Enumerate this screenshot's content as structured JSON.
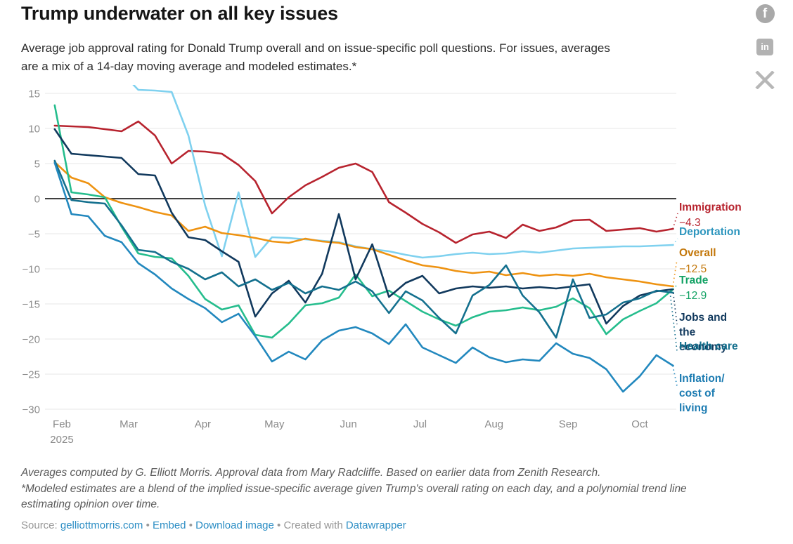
{
  "header": {
    "title": "Trump underwater on all key issues",
    "subtitle_lines": [
      "Average job approval rating for Donald Trump overall and on issue-specific poll questions. For issues, averages",
      "are a mix of a 14-day moving average and modeled estimates.*"
    ]
  },
  "social": {
    "facebook": "f",
    "linkedin": "in",
    "x": "X"
  },
  "chart_data": {
    "type": "line",
    "title": "Trump underwater on all key issues",
    "x_unit": "days since 2025-01-29, weekly cadence",
    "cadence_days": 7,
    "ylim": [
      -30,
      15
    ],
    "grid": "horizontal-only",
    "zero_line": true,
    "y_ticks": [
      15,
      10,
      5,
      0,
      -5,
      -10,
      -15,
      -20,
      -25,
      -30
    ],
    "x_ticks": [
      {
        "label": "Feb",
        "sub": "2025",
        "day": 3
      },
      {
        "label": "Mar",
        "day": 31
      },
      {
        "label": "Apr",
        "day": 62
      },
      {
        "label": "May",
        "day": 92
      },
      {
        "label": "Jun",
        "day": 123
      },
      {
        "label": "Jul",
        "day": 153
      },
      {
        "label": "Aug",
        "day": 184
      },
      {
        "label": "Sep",
        "day": 215
      },
      {
        "label": "Oct",
        "day": 245
      }
    ],
    "series": [
      {
        "id": "immigration",
        "label": "Immigration",
        "label_lines": [
          "Immigration"
        ],
        "value_label": "−4.3",
        "color": "#b7232e",
        "label_color": "#b7232e",
        "values": [
          10.4,
          10.3,
          10.2,
          9.9,
          9.6,
          11.0,
          9.0,
          5.0,
          6.8,
          6.7,
          6.4,
          4.8,
          2.5,
          -2.1,
          0.2,
          1.9,
          3.1,
          4.4,
          5.0,
          3.8,
          -0.5,
          -2.0,
          -3.6,
          -4.8,
          -6.3,
          -5.1,
          -4.7,
          -5.6,
          -3.7,
          -4.6,
          -4.1,
          -3.1,
          -3.0,
          -4.6,
          -4.4,
          -4.2,
          -4.7,
          -4.3
        ]
      },
      {
        "id": "deportation",
        "label": "Deportation",
        "label_lines": [
          "Deportation"
        ],
        "value_label": "",
        "color": "#7fd1ef",
        "label_color": "#2e96be",
        "values": [
          null,
          null,
          null,
          null,
          18.0,
          15.5,
          15.4,
          15.2,
          9.0,
          -1.0,
          -8.2,
          0.9,
          -8.3,
          -5.5,
          -5.6,
          -5.8,
          -6.0,
          -6.2,
          -6.8,
          -7.2,
          -7.5,
          -8.0,
          -8.4,
          -8.2,
          -7.9,
          -7.7,
          -7.9,
          -7.8,
          -7.5,
          -7.7,
          -7.4,
          -7.1,
          -7.0,
          -6.9,
          -6.8,
          -6.8,
          -6.7,
          -6.6
        ]
      },
      {
        "id": "overall",
        "label": "Overall",
        "label_lines": [
          "Overall"
        ],
        "value_label": "−12.5",
        "color": "#ee9312",
        "label_color": "#c3770a",
        "values": [
          5.2,
          3.0,
          2.2,
          0.2,
          -0.6,
          -1.2,
          -1.9,
          -2.4,
          -4.6,
          -4.0,
          -4.9,
          -5.2,
          -5.6,
          -6.1,
          -6.3,
          -5.7,
          -6.1,
          -6.3,
          -6.9,
          -7.2,
          -8.0,
          -8.8,
          -9.5,
          -9.8,
          -10.3,
          -10.6,
          -10.4,
          -10.9,
          -10.6,
          -11.0,
          -10.8,
          -11.0,
          -10.7,
          -11.2,
          -11.5,
          -11.8,
          -12.2,
          -12.5
        ]
      },
      {
        "id": "trade",
        "label": "Trade",
        "label_lines": [
          "Trade"
        ],
        "value_label": "−12.9",
        "color": "#25bd8d",
        "label_color": "#12a264",
        "values": [
          13.3,
          0.9,
          0.6,
          0.2,
          -4.0,
          -7.8,
          -8.3,
          -8.5,
          -11.0,
          -14.3,
          -15.8,
          -15.2,
          -19.4,
          -19.8,
          -17.8,
          -15.2,
          -14.9,
          -14.1,
          -10.8,
          -13.9,
          -13.1,
          -14.6,
          -16.1,
          -17.2,
          -18.1,
          -16.9,
          -16.1,
          -15.9,
          -15.5,
          -15.9,
          -15.4,
          -14.2,
          -15.6,
          -19.3,
          -17.2,
          -16.0,
          -14.9,
          -12.9
        ]
      },
      {
        "id": "jobs",
        "label": "Jobs and the economy",
        "label_lines": [
          "Jobs and",
          "the",
          "economy"
        ],
        "value_label": "",
        "color": "#11395d",
        "label_color": "#11395d",
        "values": [
          9.9,
          6.4,
          6.2,
          6.0,
          5.8,
          3.5,
          3.3,
          -2.0,
          -5.5,
          -5.9,
          -7.5,
          -9.0,
          -16.8,
          -13.5,
          -11.7,
          -14.8,
          -10.7,
          -2.2,
          -11.5,
          -6.5,
          -14.0,
          -12.0,
          -11.0,
          -13.5,
          -12.8,
          -12.5,
          -12.7,
          -12.5,
          -12.8,
          -12.6,
          -12.8,
          -12.5,
          -12.2,
          -17.8,
          -15.3,
          -13.8,
          -13.2,
          -12.9
        ]
      },
      {
        "id": "health",
        "label": "Health care",
        "label_lines": [
          "Health care"
        ],
        "value_label": "",
        "color": "#14708e",
        "label_color": "#14708e",
        "values": [
          5.4,
          -0.2,
          -0.5,
          -0.7,
          -3.8,
          -7.3,
          -7.6,
          -9.0,
          -10.0,
          -11.5,
          -10.5,
          -12.5,
          -11.5,
          -13.0,
          -12.0,
          -13.5,
          -12.5,
          -13.0,
          -11.8,
          -13.2,
          -16.3,
          -13.2,
          -14.5,
          -17.0,
          -19.2,
          -13.8,
          -12.3,
          -9.5,
          -13.8,
          -16.2,
          -19.8,
          -11.5,
          -17.0,
          -16.5,
          -14.8,
          -14.2,
          -13.1,
          -13.4
        ]
      },
      {
        "id": "inflation",
        "label": "Inflation/ cost of living",
        "label_lines": [
          "Inflation/",
          "cost of",
          "living"
        ],
        "value_label": "",
        "color": "#2288be",
        "label_color": "#1d7cb2",
        "values": [
          5.1,
          -2.2,
          -2.5,
          -5.3,
          -6.2,
          -9.2,
          -10.8,
          -12.8,
          -14.3,
          -15.6,
          -17.6,
          -16.4,
          -19.6,
          -23.2,
          -21.8,
          -22.9,
          -20.2,
          -18.8,
          -18.3,
          -19.2,
          -20.7,
          -17.9,
          -21.2,
          -22.3,
          -23.4,
          -21.2,
          -22.6,
          -23.3,
          -22.9,
          -23.1,
          -20.6,
          -22.1,
          -22.7,
          -24.3,
          -27.5,
          -25.3,
          -22.3,
          -23.8
        ]
      }
    ]
  },
  "footer": {
    "notes_lines": [
      "Averages computed by G. Elliott Morris. Approval data from Mary Radcliffe. Based on earlier data from Zenith Research.",
      "*Modeled estimates are a blend of the implied issue-specific average given Trump's overall rating on each day, and a polynomial trend line",
      "estimating opinion over time."
    ],
    "source_prefix": "Source: ",
    "source_link": "gelliottmorris.com",
    "sep": " • ",
    "embed_link": "Embed",
    "download_link": "Download image",
    "created_with": "Created with ",
    "datawrapper_link": "Datawrapper"
  }
}
